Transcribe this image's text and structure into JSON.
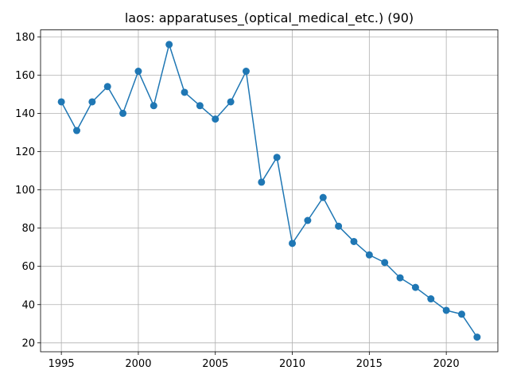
{
  "chart_data": {
    "type": "line",
    "title": "laos: apparatuses_(optical_medical_etc.) (90)",
    "xlabel": "",
    "ylabel": "",
    "grid": true,
    "marker": "circle",
    "colors": {
      "series": "#1f77b4"
    },
    "xlim": [
      1993.65,
      2023.35
    ],
    "ylim": [
      15.35,
      183.65
    ],
    "xticks": [
      1995,
      2000,
      2005,
      2010,
      2015,
      2020
    ],
    "yticks": [
      20,
      40,
      60,
      80,
      100,
      120,
      140,
      160,
      180
    ],
    "x": [
      1995,
      1996,
      1997,
      1998,
      1999,
      2000,
      2001,
      2002,
      2003,
      2004,
      2005,
      2006,
      2007,
      2008,
      2009,
      2010,
      2011,
      2012,
      2013,
      2014,
      2015,
      2016,
      2017,
      2018,
      2019,
      2020,
      2021,
      2022
    ],
    "series": [
      {
        "values": [
          146,
          131,
          146,
          154,
          140,
          162,
          144,
          176,
          151,
          144,
          137,
          146,
          162,
          104,
          117,
          72,
          84,
          96,
          81,
          73,
          66,
          62,
          54,
          49,
          43,
          37,
          35,
          23
        ]
      }
    ]
  }
}
